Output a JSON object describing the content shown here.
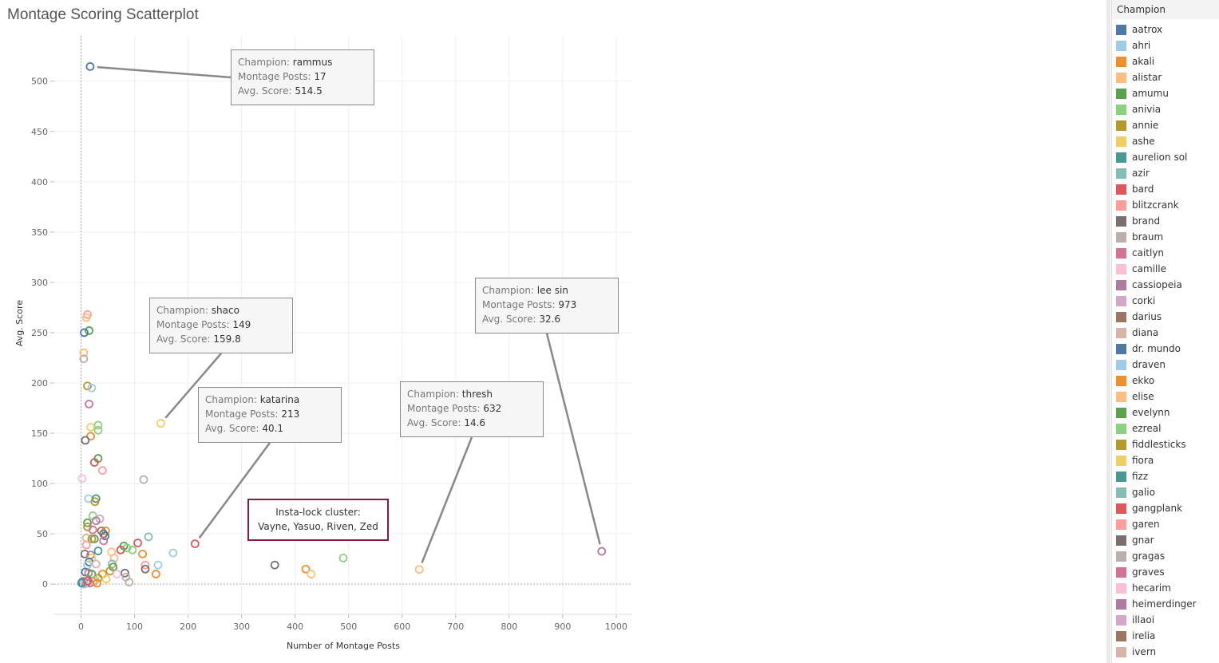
{
  "chart_data": {
    "type": "scatter",
    "title": "Montage Scoring Scatterplot",
    "xlabel": "Number of Montage Posts",
    "ylabel": "Avg. Score",
    "xlim": [
      -50,
      1030
    ],
    "ylim": [
      -30,
      545
    ],
    "xticks": [
      0,
      100,
      200,
      300,
      400,
      500,
      600,
      700,
      800,
      900,
      1000
    ],
    "yticks": [
      0,
      50,
      100,
      150,
      200,
      250,
      300,
      350,
      400,
      450,
      500
    ],
    "grid": true,
    "legend_position": "right",
    "points": [
      {
        "x": 17,
        "y": 514.5,
        "c": "#4e79a7"
      },
      {
        "x": 149,
        "y": 159.8,
        "c": "#f1ce63"
      },
      {
        "x": 213,
        "y": 40.1,
        "c": "#e15759"
      },
      {
        "x": 632,
        "y": 14.6,
        "c": "#ffbe7d"
      },
      {
        "x": 973,
        "y": 32.6,
        "c": "#b07aa1"
      },
      {
        "x": 362,
        "y": 19,
        "c": "#79706e"
      },
      {
        "x": 420,
        "y": 15,
        "c": "#f28e2b"
      },
      {
        "x": 430,
        "y": 10,
        "c": "#ffbe7d"
      },
      {
        "x": 490,
        "y": 26,
        "c": "#8cd17d"
      },
      {
        "x": 12,
        "y": 268,
        "c": "#ff9d9a"
      },
      {
        "x": 10,
        "y": 265,
        "c": "#ffbe7d"
      },
      {
        "x": 15,
        "y": 252,
        "c": "#59a14f"
      },
      {
        "x": 6,
        "y": 250,
        "c": "#4e79a7"
      },
      {
        "x": 5,
        "y": 230,
        "c": "#ffbe7d"
      },
      {
        "x": 5,
        "y": 224,
        "c": "#bab0ac"
      },
      {
        "x": 12,
        "y": 197,
        "c": "#b6992d"
      },
      {
        "x": 20,
        "y": 195,
        "c": "#a0cbe8"
      },
      {
        "x": 15,
        "y": 179,
        "c": "#d37295"
      },
      {
        "x": 32,
        "y": 158,
        "c": "#8cd17d"
      },
      {
        "x": 18,
        "y": 156,
        "c": "#f1ce63"
      },
      {
        "x": 32,
        "y": 153,
        "c": "#8cd17d"
      },
      {
        "x": 18,
        "y": 147,
        "c": "#f28e2b"
      },
      {
        "x": 8,
        "y": 143,
        "c": "#79706e"
      },
      {
        "x": 32,
        "y": 125,
        "c": "#59a14f"
      },
      {
        "x": 25,
        "y": 121,
        "c": "#e15759"
      },
      {
        "x": 40,
        "y": 113,
        "c": "#ff9d9a"
      },
      {
        "x": 2,
        "y": 105,
        "c": "#fabfd2"
      },
      {
        "x": 117,
        "y": 104,
        "c": "#bab0ac"
      },
      {
        "x": 14,
        "y": 85,
        "c": "#a0cbe8"
      },
      {
        "x": 28,
        "y": 85,
        "c": "#499894"
      },
      {
        "x": 26,
        "y": 82,
        "c": "#b6992d"
      },
      {
        "x": 22,
        "y": 68,
        "c": "#8cd17d"
      },
      {
        "x": 35,
        "y": 65,
        "c": "#d4a6c8"
      },
      {
        "x": 28,
        "y": 63,
        "c": "#b07aa1"
      },
      {
        "x": 12,
        "y": 61,
        "c": "#59a14f"
      },
      {
        "x": 12,
        "y": 57,
        "c": "#b6992d"
      },
      {
        "x": 22,
        "y": 54,
        "c": "#d37295"
      },
      {
        "x": 46,
        "y": 53,
        "c": "#f28e2b"
      },
      {
        "x": 38,
        "y": 53,
        "c": "#9d7660"
      },
      {
        "x": 42,
        "y": 50,
        "c": "#79706e"
      },
      {
        "x": 45,
        "y": 48,
        "c": "#4e79a7"
      },
      {
        "x": 126,
        "y": 47,
        "c": "#86bcb6"
      },
      {
        "x": 10,
        "y": 46,
        "c": "#d7b5a6"
      },
      {
        "x": 25,
        "y": 45,
        "c": "#59a14f"
      },
      {
        "x": 20,
        "y": 45,
        "c": "#b6992d"
      },
      {
        "x": 42,
        "y": 43,
        "c": "#d37295"
      },
      {
        "x": 106,
        "y": 41,
        "c": "#e15759"
      },
      {
        "x": 10,
        "y": 39,
        "c": "#ff9d9a"
      },
      {
        "x": 80,
        "y": 38,
        "c": "#59a14f"
      },
      {
        "x": 86,
        "y": 36,
        "c": "#8cd17d"
      },
      {
        "x": 74,
        "y": 34,
        "c": "#e15759"
      },
      {
        "x": 96,
        "y": 34,
        "c": "#8cd17d"
      },
      {
        "x": 32,
        "y": 33,
        "c": "#499894"
      },
      {
        "x": 57,
        "y": 32,
        "c": "#ffbe7d"
      },
      {
        "x": 172,
        "y": 31,
        "c": "#a0cbe8"
      },
      {
        "x": 7,
        "y": 30,
        "c": "#79706e"
      },
      {
        "x": 18,
        "y": 29,
        "c": "#b07aa1"
      },
      {
        "x": 115,
        "y": 30,
        "c": "#f28e2b"
      },
      {
        "x": 20,
        "y": 26,
        "c": "#f1ce63"
      },
      {
        "x": 62,
        "y": 26,
        "c": "#ffbe7d"
      },
      {
        "x": 15,
        "y": 22,
        "c": "#4e79a7"
      },
      {
        "x": 28,
        "y": 20,
        "c": "#d7b5a6"
      },
      {
        "x": 12,
        "y": 19,
        "c": "#a0cbe8"
      },
      {
        "x": 58,
        "y": 20,
        "c": "#86bcb6"
      },
      {
        "x": 144,
        "y": 19,
        "c": "#a0cbe8"
      },
      {
        "x": 120,
        "y": 19,
        "c": "#ff9d9a"
      },
      {
        "x": 60,
        "y": 17,
        "c": "#59a14f"
      },
      {
        "x": 120,
        "y": 15,
        "c": "#79706e"
      },
      {
        "x": 54,
        "y": 13,
        "c": "#b6992d"
      },
      {
        "x": 8,
        "y": 12,
        "c": "#4e79a7"
      },
      {
        "x": 14,
        "y": 11,
        "c": "#d37295"
      },
      {
        "x": 82,
        "y": 11,
        "c": "#79706e"
      },
      {
        "x": 40,
        "y": 10,
        "c": "#f28e2b"
      },
      {
        "x": 140,
        "y": 10,
        "c": "#f28e2b"
      },
      {
        "x": 67,
        "y": 10,
        "c": "#fabfd2"
      },
      {
        "x": 20,
        "y": 10,
        "c": "#59a14f"
      },
      {
        "x": 84,
        "y": 7,
        "c": "#bab0ac"
      },
      {
        "x": 32,
        "y": 6,
        "c": "#b6992d"
      },
      {
        "x": 47,
        "y": 5,
        "c": "#f1ce63"
      },
      {
        "x": 26,
        "y": 4,
        "c": "#8cd17d"
      },
      {
        "x": 4,
        "y": 3,
        "c": "#86bcb6"
      },
      {
        "x": 24,
        "y": 2,
        "c": "#ff9d9a"
      },
      {
        "x": 90,
        "y": 2,
        "c": "#bab0ac"
      },
      {
        "x": 2,
        "y": 2,
        "c": "#4e79a7"
      },
      {
        "x": 10,
        "y": 1,
        "c": "#d37295"
      },
      {
        "x": 16,
        "y": 1,
        "c": "#b07aa1"
      },
      {
        "x": 6,
        "y": 0,
        "c": "#a0cbe8"
      },
      {
        "x": 30,
        "y": 1,
        "c": "#f28e2b"
      },
      {
        "x": 1,
        "y": 1,
        "c": "#499894"
      },
      {
        "x": 12,
        "y": 3,
        "c": "#e15759"
      }
    ],
    "tooltips": [
      {
        "name_label": "Champion:",
        "name": "rammus",
        "posts_label": "Montage Posts:",
        "posts": "17",
        "score_label": "Avg. Score:",
        "score": "514.5"
      },
      {
        "name_label": "Champion:",
        "name": "shaco",
        "posts_label": "Montage Posts:",
        "posts": "149",
        "score_label": "Avg. Score:",
        "score": "159.8"
      },
      {
        "name_label": "Champion:",
        "name": "katarina",
        "posts_label": "Montage Posts:",
        "posts": "213",
        "score_label": "Avg. Score:",
        "score": "40.1"
      },
      {
        "name_label": "Champion:",
        "name": "thresh",
        "posts_label": "Montage Posts:",
        "posts": "632",
        "score_label": "Avg. Score:",
        "score": "14.6"
      },
      {
        "name_label": "Champion:",
        "name": "lee sin",
        "posts_label": "Montage Posts:",
        "posts": "973",
        "score_label": "Avg. Score:",
        "score": "32.6"
      }
    ],
    "annotation": {
      "line1": "Insta-lock cluster:",
      "line2": "Vayne, Yasuo, Riven, Zed"
    }
  },
  "legend": {
    "title": "Champion",
    "items": [
      {
        "label": "aatrox",
        "color": "#4e79a7"
      },
      {
        "label": "ahri",
        "color": "#a0cbe8"
      },
      {
        "label": "akali",
        "color": "#f28e2b"
      },
      {
        "label": "alistar",
        "color": "#ffbe7d"
      },
      {
        "label": "amumu",
        "color": "#59a14f"
      },
      {
        "label": "anivia",
        "color": "#8cd17d"
      },
      {
        "label": "annie",
        "color": "#b6992d"
      },
      {
        "label": "ashe",
        "color": "#f1ce63"
      },
      {
        "label": "aurelion sol",
        "color": "#499894"
      },
      {
        "label": "azir",
        "color": "#86bcb6"
      },
      {
        "label": "bard",
        "color": "#e15759"
      },
      {
        "label": "blitzcrank",
        "color": "#ff9d9a"
      },
      {
        "label": "brand",
        "color": "#79706e"
      },
      {
        "label": "braum",
        "color": "#bab0ac"
      },
      {
        "label": "caitlyn",
        "color": "#d37295"
      },
      {
        "label": "camille",
        "color": "#fabfd2"
      },
      {
        "label": "cassiopeia",
        "color": "#b07aa1"
      },
      {
        "label": "corki",
        "color": "#d4a6c8"
      },
      {
        "label": "darius",
        "color": "#9d7660"
      },
      {
        "label": "diana",
        "color": "#d7b5a6"
      },
      {
        "label": "dr. mundo",
        "color": "#4e79a7"
      },
      {
        "label": "draven",
        "color": "#a0cbe8"
      },
      {
        "label": "ekko",
        "color": "#f28e2b"
      },
      {
        "label": "elise",
        "color": "#ffbe7d"
      },
      {
        "label": "evelynn",
        "color": "#59a14f"
      },
      {
        "label": "ezreal",
        "color": "#8cd17d"
      },
      {
        "label": "fiddlesticks",
        "color": "#b6992d"
      },
      {
        "label": "fiora",
        "color": "#f1ce63"
      },
      {
        "label": "fizz",
        "color": "#499894"
      },
      {
        "label": "galio",
        "color": "#86bcb6"
      },
      {
        "label": "gangplank",
        "color": "#e15759"
      },
      {
        "label": "garen",
        "color": "#ff9d9a"
      },
      {
        "label": "gnar",
        "color": "#79706e"
      },
      {
        "label": "gragas",
        "color": "#bab0ac"
      },
      {
        "label": "graves",
        "color": "#d37295"
      },
      {
        "label": "hecarim",
        "color": "#fabfd2"
      },
      {
        "label": "heimerdinger",
        "color": "#b07aa1"
      },
      {
        "label": "illaoi",
        "color": "#d4a6c8"
      },
      {
        "label": "irelia",
        "color": "#9d7660"
      },
      {
        "label": "ivern",
        "color": "#d7b5a6"
      }
    ]
  }
}
